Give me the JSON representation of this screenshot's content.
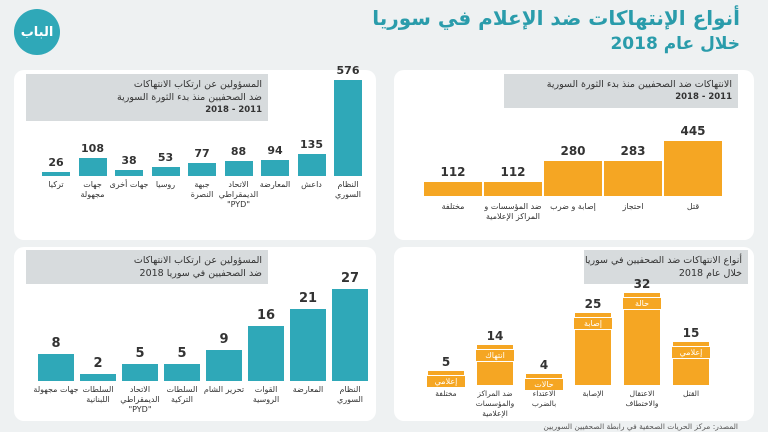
{
  "header": {
    "title": "أنواع الإنتهاكات ضد الإعلام في سوريا",
    "subtitle": "خلال عام 2018",
    "logo_text": "الباب"
  },
  "source": "المصدر: مركز الحريات الصحفية في رابطة الصحفيين السوريين",
  "colors": {
    "teal": "#2fa8b8",
    "orange": "#f5a623"
  },
  "chart_data": [
    {
      "id": "responsible_since_revolution",
      "type": "bar",
      "title": "المسؤولين عن ارتكاب الانتهاكات ضد الصحفيين منذ بدء الثورة السورية",
      "title_lines": [
        "المسؤولين عن ارتكاب الانتهاكات",
        "ضد الصحفيين منذ بدء الثورة السورية"
      ],
      "period": "2011 - 2018",
      "categories": [
        "تركيا",
        "جهات مجهولة",
        "جهات أخرى",
        "روسيا",
        "جبهة النصرة",
        "الاتحاد الديمقراطي \"PYD\"",
        "المعارضة",
        "داعش",
        "النظام السوري"
      ],
      "values": [
        26,
        108,
        38,
        53,
        77,
        88,
        94,
        135,
        576
      ],
      "ylim": [
        0,
        576
      ],
      "color": "#2fa8b8"
    },
    {
      "id": "violations_since_revolution",
      "type": "bar",
      "title": "الانتهاكات ضد الصحفيين منذ بدء الثورة السورية",
      "title_lines": [
        "الانتهاكات ضد الصحفيين منذ بدء الثورة السورية"
      ],
      "period": "2011 - 2018",
      "categories": [
        "مختلفة",
        "ضد المؤسسات و المراكز الإعلامية",
        "إصابة و ضرب",
        "احتجاز",
        "قتل"
      ],
      "values": [
        112,
        112,
        280,
        283,
        445
      ],
      "ylim": [
        0,
        445
      ],
      "color": "#f5a623"
    },
    {
      "id": "responsible_2018",
      "type": "bar",
      "title": "المسؤولين عن ارتكاب الانتهاكات ضد الصحفيين في سوريا 2018",
      "title_lines": [
        "المسؤولين عن ارتكاب الانتهاكات",
        "ضد الصحفيين في سوريا 2018"
      ],
      "period": "",
      "categories": [
        "جهات مجهولة",
        "السلطات اللبنانية",
        "الاتحاد الديمقراطي \"PYD\"",
        "السلطات التركية",
        "تحرير الشام",
        "القوات الروسية",
        "المعارضة",
        "النظام السوري"
      ],
      "values": [
        8,
        2,
        5,
        5,
        9,
        16,
        21,
        27
      ],
      "ylim": [
        0,
        27
      ],
      "color": "#2fa8b8"
    },
    {
      "id": "violation_types_2018",
      "type": "bar",
      "title": "أنواع الانتهاكات ضد الصحفيين في سوريا خلال عام 2018",
      "title_lines": [
        "أنواع الانتهاكات ضد الصحفيين في سوريا",
        "خلال عام 2018"
      ],
      "period": "",
      "categories": [
        "مختلفة",
        "ضد المراكز والمؤسسات الإعلامية",
        "الاعتداء بالضرب",
        "الإصابة",
        "الاعتقال والاختطاف",
        "القتل"
      ],
      "values": [
        5,
        14,
        4,
        25,
        32,
        15
      ],
      "tags": [
        "إعلامي",
        "انتهاك",
        "حالات",
        "إصابة",
        "حالة",
        "إعلامي"
      ],
      "ylim": [
        0,
        32
      ],
      "color": "#f5a623"
    }
  ]
}
